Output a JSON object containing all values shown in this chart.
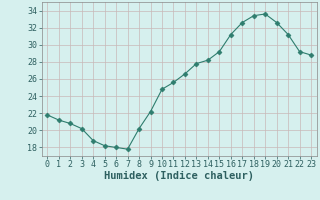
{
  "x": [
    0,
    1,
    2,
    3,
    4,
    5,
    6,
    7,
    8,
    9,
    10,
    11,
    12,
    13,
    14,
    15,
    16,
    17,
    18,
    19,
    20,
    21,
    22,
    23
  ],
  "y": [
    21.8,
    21.2,
    20.8,
    20.2,
    18.8,
    18.2,
    18.0,
    17.8,
    20.2,
    22.2,
    24.8,
    25.6,
    26.6,
    27.8,
    28.2,
    29.2,
    31.2,
    32.6,
    33.4,
    33.6,
    32.6,
    31.2,
    29.2,
    28.8
  ],
  "line_color": "#2e7d6e",
  "marker": "D",
  "marker_size": 2.5,
  "bg_color": "#d6f0ee",
  "grid_color": "#c8b8b8",
  "xlabel": "Humidex (Indice chaleur)",
  "xlabel_fontsize": 7.5,
  "tick_fontsize": 6,
  "ylim": [
    17,
    35
  ],
  "yticks": [
    18,
    20,
    22,
    24,
    26,
    28,
    30,
    32,
    34
  ],
  "xlim": [
    -0.5,
    23.5
  ],
  "xticks": [
    0,
    1,
    2,
    3,
    4,
    5,
    6,
    7,
    8,
    9,
    10,
    11,
    12,
    13,
    14,
    15,
    16,
    17,
    18,
    19,
    20,
    21,
    22,
    23
  ]
}
